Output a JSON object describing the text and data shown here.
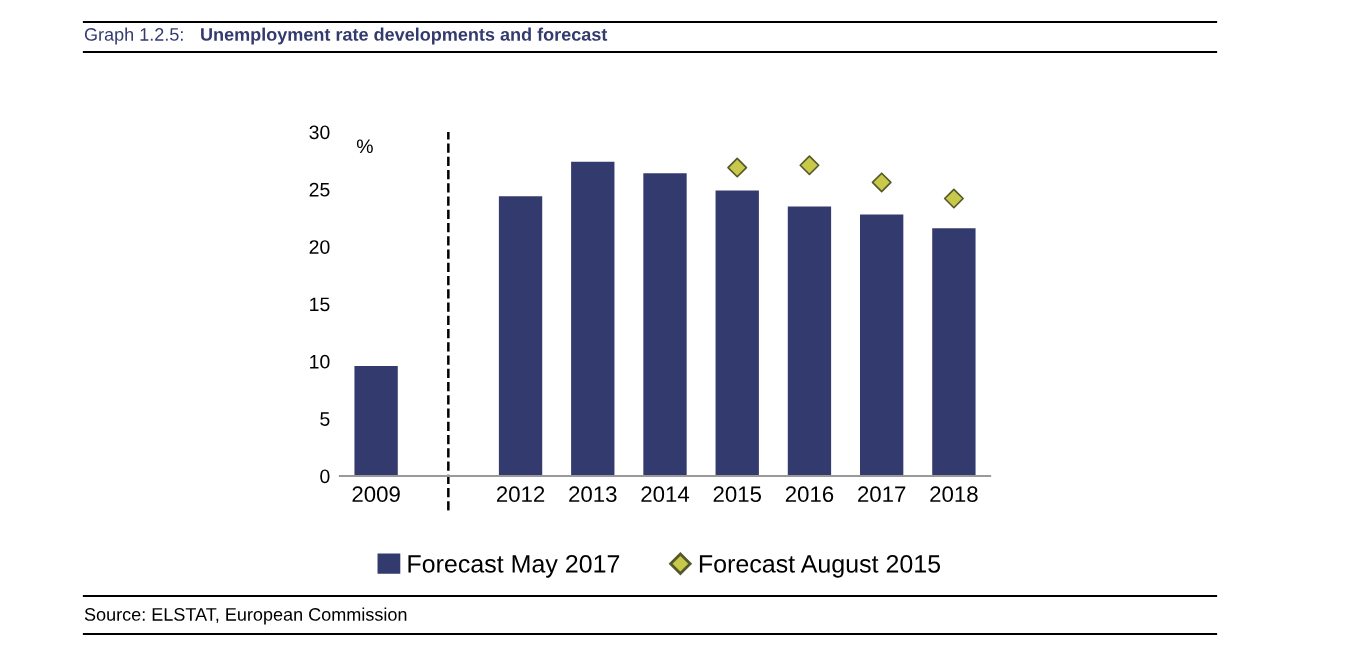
{
  "chart_data": {
    "type": "bar",
    "title": "Unemployment rate developments and forecast",
    "categories": [
      "2009",
      null,
      "2012",
      "2013",
      "2014",
      "2015",
      "2016",
      "2017",
      "2018"
    ],
    "series": [
      {
        "name": "Forecast May 2017",
        "color": "#333a6e",
        "values": [
          9.6,
          null,
          24.4,
          27.4,
          26.4,
          24.9,
          23.5,
          22.8,
          21.6
        ]
      },
      {
        "name": "Forecast August 2015",
        "type": "scatter",
        "color": "#c8c84a",
        "marker": "diamond",
        "values": [
          null,
          null,
          null,
          null,
          null,
          26.9,
          27.1,
          25.6,
          24.2
        ]
      }
    ],
    "ylim": [
      0,
      30
    ],
    "yticks": [
      0,
      5,
      10,
      15,
      20,
      25,
      30
    ],
    "annotations": [
      "Graph 1.2.5:",
      "%",
      "Source: ELSTAT, European Commission"
    ],
    "legend": "bottom"
  }
}
